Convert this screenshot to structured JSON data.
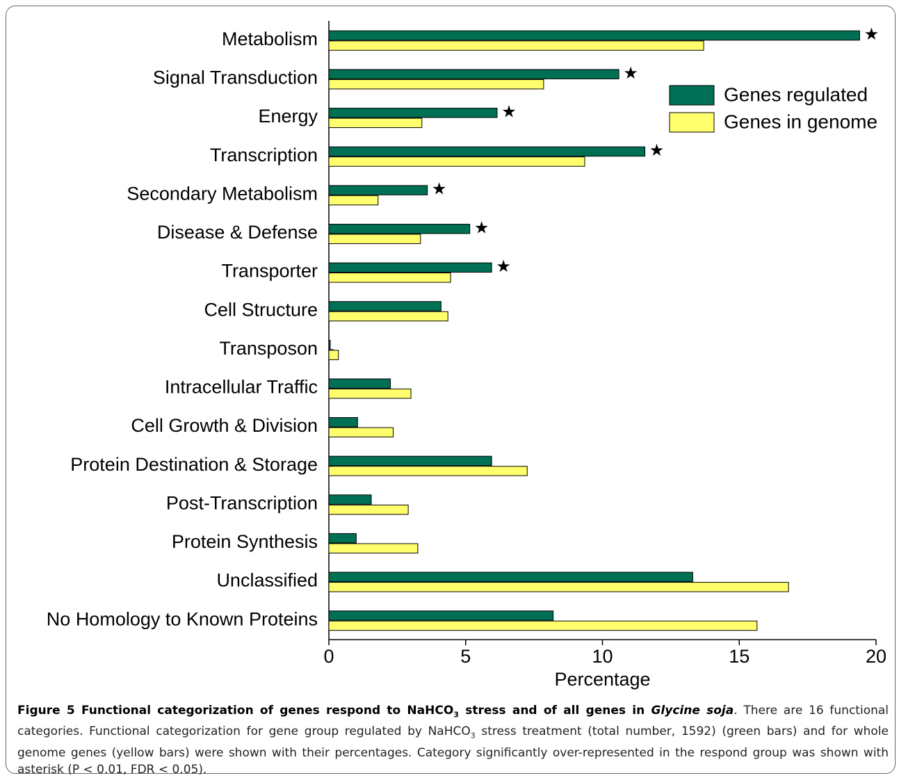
{
  "chart_data": {
    "type": "hbar",
    "categories": [
      "Metabolism",
      "Signal Transduction",
      "Energy",
      "Transcription",
      "Secondary Metabolism",
      "Disease & Defense",
      "Transporter",
      "Cell Structure",
      "Transposon",
      "Intracellular Traffic",
      "Cell Growth & Division",
      "Protein Destination & Storage",
      "Post-Transcription",
      "Protein Synthesis",
      "Unclassified",
      "No Homology to Known Proteins"
    ],
    "series": [
      {
        "name": "Genes regulated",
        "color": "#007055",
        "values": [
          19.4,
          10.6,
          6.15,
          11.55,
          3.6,
          5.15,
          5.95,
          4.1,
          0.05,
          2.25,
          1.05,
          5.95,
          1.55,
          1.0,
          13.3,
          8.2
        ]
      },
      {
        "name": "Genes in genome",
        "color": "#ffff6e",
        "values": [
          13.7,
          7.85,
          3.4,
          9.35,
          1.8,
          3.35,
          4.45,
          4.35,
          0.35,
          3.0,
          2.35,
          7.25,
          2.9,
          3.25,
          16.8,
          15.65
        ]
      }
    ],
    "markers": [
      "★",
      "★",
      "★",
      "★",
      "★",
      "★",
      "★",
      null,
      null,
      null,
      null,
      null,
      null,
      null,
      null,
      null
    ],
    "xlabel": "Percentage",
    "xlim": [
      0,
      20
    ],
    "xticks": [
      0,
      5,
      10,
      15,
      20
    ],
    "legend": "upper right"
  },
  "caption": [
    "Figure 5 Functional categorization of genes respond to NaHCO",
    "3",
    " stress and of all genes in ",
    "Glycine soja",
    ". There are 16 functional categories. Functional categorization for gene group regulated by NaHCO",
    "3",
    " stress treatment (total number, 1592) (green bars) and for whole genome genes (yellow bars) were shown with their percentages. Category significantly over-represented in the respond group was shown with asterisk (P < 0.01, FDR < 0.05)."
  ]
}
